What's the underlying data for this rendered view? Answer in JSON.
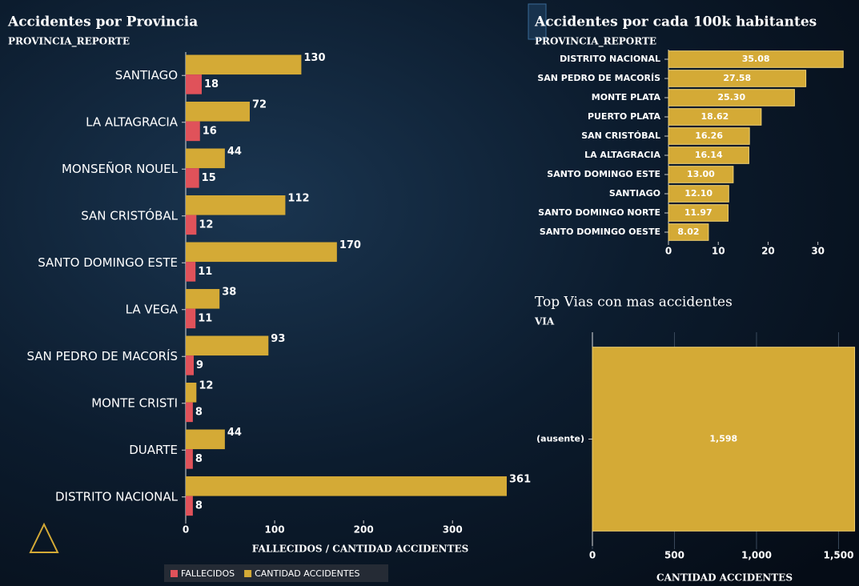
{
  "chart_data": [
    {
      "type": "bar",
      "title": "Accidentes por Provincia",
      "y_label": "PROVINCIA_REPORTE",
      "x_label": "FALLECIDOS / CANTIDAD ACCIDENTES",
      "categories": [
        "SANTIAGO",
        "LA ALTAGRACIA",
        "MONSEÑOR NOUEL",
        "SAN CRISTÓBAL",
        "SANTO DOMINGO ESTE",
        "LA VEGA",
        "SAN PEDRO DE MACORÍS",
        "MONTE CRISTI",
        "DUARTE",
        "DISTRITO NACIONAL"
      ],
      "series": [
        {
          "name": "FALLECIDOS",
          "color": "#e0525a",
          "values": [
            18,
            16,
            15,
            12,
            11,
            11,
            9,
            8,
            8,
            8
          ]
        },
        {
          "name": "CANTIDAD ACCIDENTES",
          "color": "#d4aa36",
          "values": [
            130,
            72,
            44,
            112,
            170,
            38,
            93,
            12,
            44,
            361
          ]
        }
      ],
      "xlim": [
        0,
        370
      ],
      "xticks": [
        0,
        100,
        200,
        300
      ],
      "grid": false,
      "legend": "bottom"
    },
    {
      "type": "bar",
      "title": "Accidentes por cada 100k habitantes",
      "y_label": "PROVINCIA_REPORTE",
      "categories": [
        "DISTRITO NACIONAL",
        "SAN PEDRO DE MACORÍS",
        "MONTE PLATA",
        "PUERTO PLATA",
        "SAN CRISTÓBAL",
        "LA ALTAGRACIA",
        "SANTO DOMINGO ESTE",
        "SANTIAGO",
        "SANTO DOMINGO NORTE",
        "SANTO DOMINGO OESTE"
      ],
      "values": [
        35.08,
        27.58,
        25.3,
        18.62,
        16.26,
        16.14,
        13.0,
        12.1,
        11.97,
        8.02
      ],
      "value_labels": [
        "35.08",
        "27.58",
        "25.30",
        "18.62",
        "16.26",
        "16.14",
        "13.00",
        "12.10",
        "11.97",
        "8.02"
      ],
      "color": "#d4aa36",
      "xlim": [
        0,
        36
      ],
      "xticks": [
        0,
        10,
        20,
        30
      ],
      "grid": false
    },
    {
      "type": "bar",
      "title": "Top Vias con mas accidentes",
      "y_label": "VIA",
      "x_label": "CANTIDAD ACCIDENTES",
      "categories": [
        "(ausente)"
      ],
      "values": [
        1598
      ],
      "value_labels": [
        "1,598"
      ],
      "color": "#d4aa36",
      "xlim": [
        0,
        1610
      ],
      "xticks": [
        0,
        500,
        {
          "value": 1000,
          "label": "1,000"
        },
        {
          "value": 1500,
          "label": "1,500"
        }
      ],
      "grid": true
    }
  ]
}
